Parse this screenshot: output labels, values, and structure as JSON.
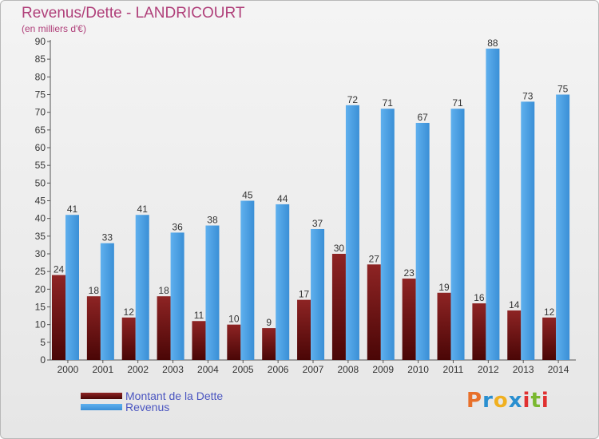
{
  "title": "Revenus/Dette - LANDRICOURT",
  "subtitle": "(en milliers d'€)",
  "legend": [
    {
      "label": "Montant de la Dette",
      "color": "#6b1010"
    },
    {
      "label": "Revenus",
      "color": "#4a9fe0"
    }
  ],
  "logo": {
    "text": "Proxiti",
    "colors": [
      "#e8702a",
      "#2a8fd0",
      "#f0b020",
      "#2a8fd0",
      "#e03030",
      "#7ab830",
      "#e03030"
    ]
  },
  "colors": {
    "dette": "#7a1515",
    "revenus": "#4aa0e2",
    "axis": "#555555",
    "grid": "#cccccc",
    "title": "#b0407a"
  },
  "chart_data": {
    "type": "bar",
    "categories": [
      "2000",
      "2001",
      "2002",
      "2003",
      "2004",
      "2005",
      "2006",
      "2007",
      "2008",
      "2009",
      "2010",
      "2011",
      "2012",
      "2013",
      "2014"
    ],
    "series": [
      {
        "name": "Montant de la Dette",
        "values": [
          24,
          18,
          12,
          18,
          11,
          10,
          9,
          17,
          30,
          27,
          23,
          19,
          16,
          14,
          12
        ]
      },
      {
        "name": "Revenus",
        "values": [
          41,
          33,
          41,
          36,
          38,
          45,
          44,
          37,
          72,
          71,
          67,
          71,
          88,
          73,
          75
        ]
      }
    ],
    "title": "Revenus/Dette - LANDRICOURT",
    "ylabel": "(en milliers d'€)",
    "ylim": [
      0,
      90
    ],
    "yticks": [
      0,
      5,
      10,
      15,
      20,
      25,
      30,
      35,
      40,
      45,
      50,
      55,
      60,
      65,
      70,
      75,
      80,
      85,
      90
    ],
    "grid": false,
    "legend_position": "bottom-left"
  }
}
